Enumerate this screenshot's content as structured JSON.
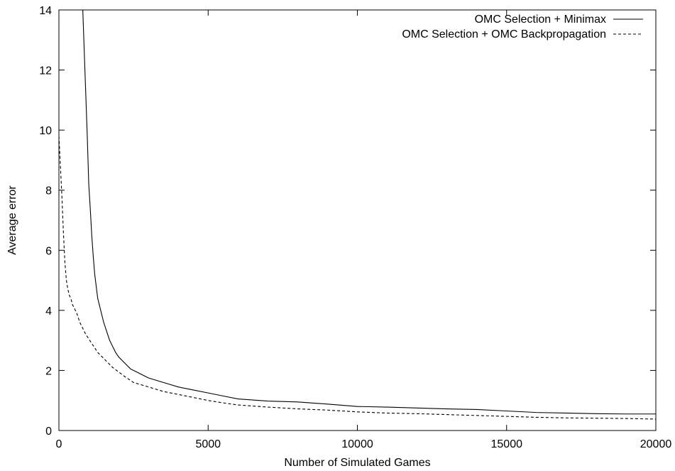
{
  "chart_data": {
    "type": "line",
    "title": "",
    "xlabel": "Number of Simulated Games",
    "ylabel": "Average error",
    "xlim": [
      0,
      20000
    ],
    "ylim": [
      0,
      14
    ],
    "xticks": [
      0,
      5000,
      10000,
      15000,
      20000
    ],
    "yticks": [
      0,
      2,
      4,
      6,
      8,
      10,
      12,
      14
    ],
    "grid": false,
    "legend_position": "top-right",
    "series": [
      {
        "name": "OMC Selection + Minimax",
        "style": "solid",
        "color": "#000000",
        "x": [
          800,
          850,
          900,
          950,
          1000,
          1050,
          1100,
          1150,
          1200,
          1250,
          1300,
          1400,
          1500,
          1600,
          1700,
          1800,
          1900,
          2000,
          2200,
          2400,
          2600,
          2800,
          3000,
          3500,
          4000,
          4500,
          5000,
          5500,
          6000,
          7000,
          8000,
          9000,
          10000,
          11000,
          12000,
          13000,
          14000,
          15000,
          16000,
          17000,
          18000,
          19000,
          20000
        ],
        "y": [
          14,
          12.6,
          11.2,
          9.8,
          8.2,
          7.4,
          6.5,
          5.8,
          5.2,
          4.8,
          4.4,
          4.0,
          3.6,
          3.3,
          3.0,
          2.8,
          2.6,
          2.45,
          2.25,
          2.05,
          1.95,
          1.85,
          1.75,
          1.6,
          1.45,
          1.35,
          1.25,
          1.15,
          1.05,
          0.98,
          0.95,
          0.88,
          0.8,
          0.78,
          0.75,
          0.72,
          0.7,
          0.65,
          0.6,
          0.58,
          0.56,
          0.55,
          0.55
        ]
      },
      {
        "name": "OMC Selection + OMC Backpropagation",
        "style": "dashed",
        "color": "#000000",
        "x": [
          0,
          50,
          100,
          150,
          200,
          250,
          300,
          350,
          400,
          450,
          500,
          600,
          700,
          800,
          900,
          1000,
          1100,
          1200,
          1300,
          1400,
          1500,
          1600,
          1800,
          2000,
          2200,
          2500,
          3000,
          3500,
          4000,
          4500,
          5000,
          5500,
          6000,
          7000,
          8000,
          9000,
          10000,
          11000,
          12000,
          13000,
          14000,
          15000,
          16000,
          17000,
          18000,
          19000,
          20000
        ],
        "y": [
          9.8,
          8.8,
          7.8,
          6.6,
          5.6,
          5.0,
          4.7,
          4.5,
          4.4,
          4.2,
          4.1,
          3.9,
          3.6,
          3.4,
          3.2,
          3.05,
          2.9,
          2.75,
          2.6,
          2.5,
          2.4,
          2.3,
          2.1,
          1.95,
          1.8,
          1.6,
          1.45,
          1.3,
          1.2,
          1.1,
          1.0,
          0.92,
          0.85,
          0.78,
          0.72,
          0.68,
          0.62,
          0.58,
          0.56,
          0.53,
          0.5,
          0.47,
          0.44,
          0.42,
          0.41,
          0.4,
          0.38
        ]
      }
    ]
  }
}
